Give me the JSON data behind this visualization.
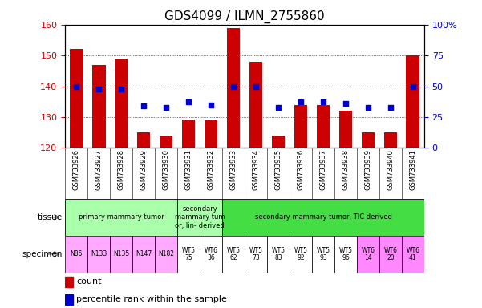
{
  "title": "GDS4099 / ILMN_2755860",
  "samples": [
    "GSM733926",
    "GSM733927",
    "GSM733928",
    "GSM733929",
    "GSM733930",
    "GSM733931",
    "GSM733932",
    "GSM733933",
    "GSM733934",
    "GSM733935",
    "GSM733936",
    "GSM733937",
    "GSM733938",
    "GSM733939",
    "GSM733940",
    "GSM733941"
  ],
  "counts": [
    152,
    147,
    149,
    125,
    124,
    129,
    129,
    159,
    148,
    124,
    134,
    134,
    132,
    125,
    125,
    150
  ],
  "percentile_ranks": [
    50,
    48,
    48,
    34,
    33,
    37,
    35,
    50,
    50,
    33,
    37,
    37,
    36,
    33,
    33,
    50
  ],
  "ylim_left": [
    120,
    160
  ],
  "ylim_right": [
    0,
    100
  ],
  "yticks_left": [
    120,
    130,
    140,
    150,
    160
  ],
  "yticks_right": [
    0,
    25,
    50,
    75,
    100
  ],
  "bar_color": "#cc0000",
  "dot_color": "#0000cc",
  "bar_bottom": 120,
  "tissue_groups": [
    {
      "text": "primary mammary tumor",
      "start": 0,
      "end": 5,
      "color": "#aaffaa"
    },
    {
      "text": "secondary\nmammary tum\nor, lin- derived",
      "start": 5,
      "end": 7,
      "color": "#aaffaa"
    },
    {
      "text": "secondary mammary tumor, TIC derived",
      "start": 7,
      "end": 16,
      "color": "#44dd44"
    }
  ],
  "specimen_labels": [
    {
      "text": "N86",
      "color": "#ffaaff"
    },
    {
      "text": "N133",
      "color": "#ffaaff"
    },
    {
      "text": "N135",
      "color": "#ffaaff"
    },
    {
      "text": "N147",
      "color": "#ffaaff"
    },
    {
      "text": "N182",
      "color": "#ffaaff"
    },
    {
      "text": "WT5\n75",
      "color": "#ffffff"
    },
    {
      "text": "WT6\n36",
      "color": "#ffffff"
    },
    {
      "text": "WT5\n62",
      "color": "#ffffff"
    },
    {
      "text": "WT5\n73",
      "color": "#ffffff"
    },
    {
      "text": "WT5\n83",
      "color": "#ffffff"
    },
    {
      "text": "WT5\n92",
      "color": "#ffffff"
    },
    {
      "text": "WT5\n93",
      "color": "#ffffff"
    },
    {
      "text": "WT5\n96",
      "color": "#ffffff"
    },
    {
      "text": "WT6\n14",
      "color": "#ff88ff"
    },
    {
      "text": "WT6\n20",
      "color": "#ff88ff"
    },
    {
      "text": "WT6\n41",
      "color": "#ff88ff"
    }
  ],
  "legend_count_color": "#cc0000",
  "legend_dot_color": "#0000cc",
  "bg_color": "#ffffff",
  "plot_bg": "#ffffff",
  "tick_label_color_left": "#cc0000",
  "tick_label_color_right": "#0000cc",
  "grid_color": "#000000",
  "spine_color": "#000000",
  "sample_label_bg": "#cccccc",
  "title_fontsize": 11,
  "axis_fontsize": 8,
  "legend_fontsize": 8
}
